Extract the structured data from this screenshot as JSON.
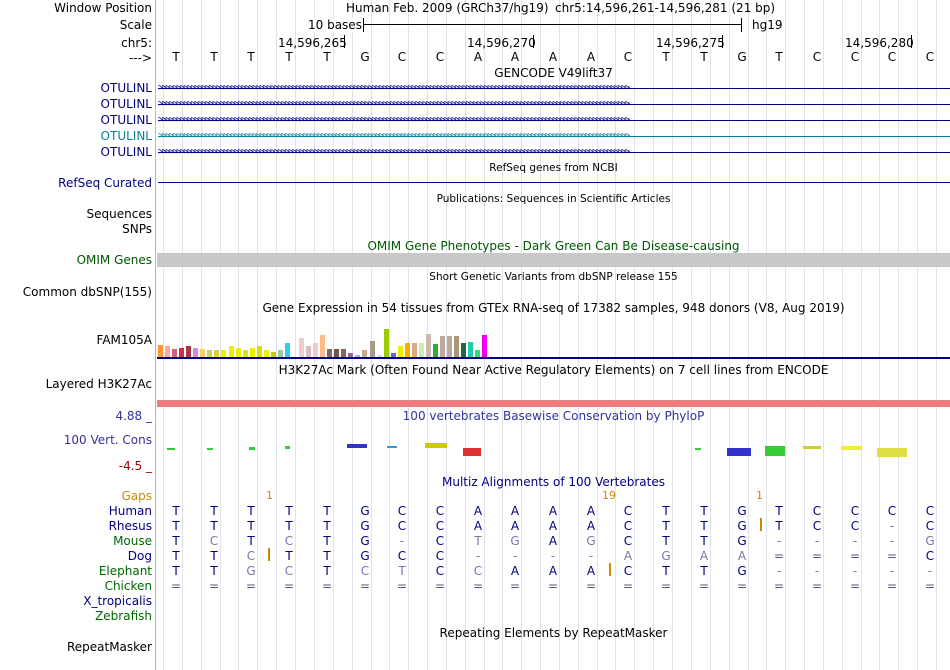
{
  "header": {
    "window_position_label": "Window Position",
    "assembly": "Human Feb. 2009 (GRCh37/hg19)",
    "position": "chr5:14,596,261-14,596,281 (21 bp)",
    "scale_label": "Scale",
    "scale_text": "10 bases",
    "scale_db": "hg19",
    "chrom_label": "chr5:",
    "ticks": [
      "14,596,265",
      "14,596,270",
      "14,596,275",
      "14,596,280"
    ],
    "strand_label": "--->",
    "bases": [
      "T",
      "T",
      "T",
      "T",
      "T",
      "G",
      "C",
      "C",
      "A",
      "A",
      "A",
      "A",
      "C",
      "T",
      "T",
      "G",
      "T",
      "C",
      "C",
      "C",
      "C"
    ]
  },
  "gencode": {
    "title": "GENCODE V49lift37",
    "transcripts": [
      {
        "name": "OTULINL",
        "color": "#000080"
      },
      {
        "name": "OTULINL",
        "color": "#000080"
      },
      {
        "name": "OTULINL",
        "color": "#000080"
      },
      {
        "name": "OTULINL",
        "color": "#0b7f99"
      },
      {
        "name": "OTULINL",
        "color": "#000080"
      }
    ],
    "arrow_text": ">>>>>>>>>>>>>>>>>>>>>>>>>>>>>>>>>>>>>>>>>>>>>>>>>>>>>>>>>>>>>>>>>>>>>>>>>>>>>>>>>>>>>>>>>>>>>>>>>>>>>>>>>>>>>>>>>>>>>>>>>>>>>>>>>>"
  },
  "refseq": {
    "title": "RefSeq genes from NCBI",
    "label": "RefSeq Curated",
    "color": "#000080"
  },
  "publications": {
    "title": "Publications: Sequences in Scientific Articles",
    "label": "Sequences"
  },
  "snps_label": "SNPs",
  "omim": {
    "title": "OMIM Gene Phenotypes - Dark Green Can Be Disease-causing",
    "label": "OMIM Genes",
    "color": "#005500",
    "bar_color": "#c8c8c8"
  },
  "dbsnp": {
    "title": "Short Genetic Variants from dbSNP release 155",
    "label": "Common dbSNP(155)"
  },
  "gtex": {
    "title": "Gene Expression in 54 tissues from GTEx RNA-seq of 17382 samples, 948 donors (V8, Aug 2019)",
    "label": "FAM105A",
    "bars": [
      {
        "color": "#ff9933",
        "value": 0.5
      },
      {
        "color": "#ffaa99",
        "value": 0.45
      },
      {
        "color": "#cc6677",
        "value": 0.35
      },
      {
        "color": "#cc3333",
        "value": 0.4
      },
      {
        "color": "#aa3344",
        "value": 0.45
      },
      {
        "color": "#dd88cc",
        "value": 0.4
      },
      {
        "color": "#ffcc55",
        "value": 0.35
      },
      {
        "color": "#cccc77",
        "value": 0.3
      },
      {
        "color": "#ddcc44",
        "value": 0.3
      },
      {
        "color": "#eeee00",
        "value": 0.3
      },
      {
        "color": "#eeee00",
        "value": 0.45
      },
      {
        "color": "#eeee00",
        "value": 0.4
      },
      {
        "color": "#dddd22",
        "value": 0.3
      },
      {
        "color": "#eeee00",
        "value": 0.4
      },
      {
        "color": "#dddd00",
        "value": 0.45
      },
      {
        "color": "#eeee00",
        "value": 0.3
      },
      {
        "color": "#cccc00",
        "value": 0.2
      },
      {
        "color": "#99cc99",
        "value": 0.3
      },
      {
        "color": "#33ccee",
        "value": 0.6
      },
      {
        "color": "#ffffff",
        "value": 0.0
      },
      {
        "color": "#eecccc",
        "value": 0.8
      },
      {
        "color": "#ddbbbb",
        "value": 0.45
      },
      {
        "color": "#eecccc",
        "value": 0.6
      },
      {
        "color": "#ffbb88",
        "value": 0.95
      },
      {
        "color": "#886655",
        "value": 0.35
      },
      {
        "color": "#775544",
        "value": 0.35
      },
      {
        "color": "#886655",
        "value": 0.35
      },
      {
        "color": "#996699",
        "value": 0.15
      },
      {
        "color": "#aaaaff",
        "value": 0.1
      },
      {
        "color": "#ccaa88",
        "value": 0.3
      },
      {
        "color": "#aa9988",
        "value": 0.7
      },
      {
        "color": "#dddddd",
        "value": 0.1
      },
      {
        "color": "#99cc00",
        "value": 1.2
      },
      {
        "color": "#6666cc",
        "value": 0.15
      },
      {
        "color": "#eeee00",
        "value": 0.45
      },
      {
        "color": "#ffaa00",
        "value": 0.6
      },
      {
        "color": "#ddaa88",
        "value": 0.6
      },
      {
        "color": "#cceeaa",
        "value": 0.6
      },
      {
        "color": "#ccbbaa",
        "value": 1.0
      },
      {
        "color": "#33aa33",
        "value": 0.55
      },
      {
        "color": "#bbaa99",
        "value": 0.9
      },
      {
        "color": "#bbaa99",
        "value": 0.9
      },
      {
        "color": "#aa9977",
        "value": 0.9
      },
      {
        "color": "#226644",
        "value": 0.6
      },
      {
        "color": "#22ccaa",
        "value": 0.65
      },
      {
        "color": "#33dd66",
        "value": 0.3
      },
      {
        "color": "#ee00ee",
        "value": 0.95
      },
      {
        "color": "#ffffff",
        "value": 0.0
      }
    ]
  },
  "h3k27ac": {
    "title": "H3K27Ac Mark (Often Found Near Active Regulatory Elements) on 7 cell lines from ENCODE",
    "label": "Layered H3K27Ac",
    "color": "#f07d7d"
  },
  "phylop": {
    "title": "100 vertebrates Basewise Conservation by PhyloP",
    "label": "100 Vert. Cons",
    "max": "4.88 _",
    "min": "-4.5 _",
    "title_color": "#333399",
    "min_color": "#990000"
  },
  "multiz": {
    "title": "Multiz Alignments of 100 Vertebrates",
    "title_color": "#000080",
    "gaps_label": "Gaps",
    "gaps_color": "#cc8800",
    "gap_counts": [
      "1",
      "19",
      "1"
    ],
    "species": [
      {
        "name": "Human",
        "color": "#000080",
        "bases": [
          "T",
          "T",
          "T",
          "T",
          "T",
          "G",
          "C",
          "C",
          "A",
          "A",
          "A",
          "A",
          "C",
          "T",
          "T",
          "G",
          "T",
          "C",
          "C",
          "C",
          "C"
        ]
      },
      {
        "name": "Rhesus",
        "color": "#000080",
        "bases": [
          "T",
          "T",
          "T",
          "T",
          "T",
          "G",
          "C",
          "C",
          "A",
          "A",
          "A",
          "A",
          "C",
          "T",
          "T",
          "G",
          "T",
          "C",
          "C",
          "-",
          "C"
        ]
      },
      {
        "name": "Mouse",
        "color": "#006600",
        "bases": [
          "T",
          "C",
          "T",
          "C",
          "T",
          "G",
          "-",
          "C",
          "T",
          "G",
          "A",
          "G",
          "C",
          "T",
          "T",
          "G",
          "-",
          "-",
          "-",
          "-",
          "G"
        ]
      },
      {
        "name": "Dog",
        "color": "#000080",
        "bases": [
          "T",
          "T",
          "C",
          "T",
          "T",
          "G",
          "C",
          "C",
          "-",
          "-",
          "-",
          "-",
          "A",
          "G",
          "A",
          "A",
          "=",
          "=",
          "=",
          "=",
          "C"
        ]
      },
      {
        "name": "Elephant",
        "color": "#006600",
        "bases": [
          "T",
          "T",
          "G",
          "C",
          "T",
          "C",
          "T",
          "C",
          "C",
          "A",
          "A",
          "A",
          "C",
          "T",
          "T",
          "G",
          "-",
          "-",
          "-",
          "-",
          "-"
        ]
      },
      {
        "name": "Chicken",
        "color": "#006600",
        "bases": [
          "=",
          "=",
          "=",
          "=",
          "=",
          "=",
          "=",
          "=",
          "=",
          "=",
          "=",
          "=",
          "=",
          "=",
          "=",
          "=",
          "=",
          "=",
          "=",
          "=",
          "="
        ]
      },
      {
        "name": "X_tropicalis",
        "color": "#000080",
        "bases": []
      },
      {
        "name": "Zebrafish",
        "color": "#006600",
        "bases": []
      }
    ]
  },
  "repeatmasker": {
    "title": "Repeating Elements by RepeatMasker",
    "label": "RepeatMasker"
  }
}
